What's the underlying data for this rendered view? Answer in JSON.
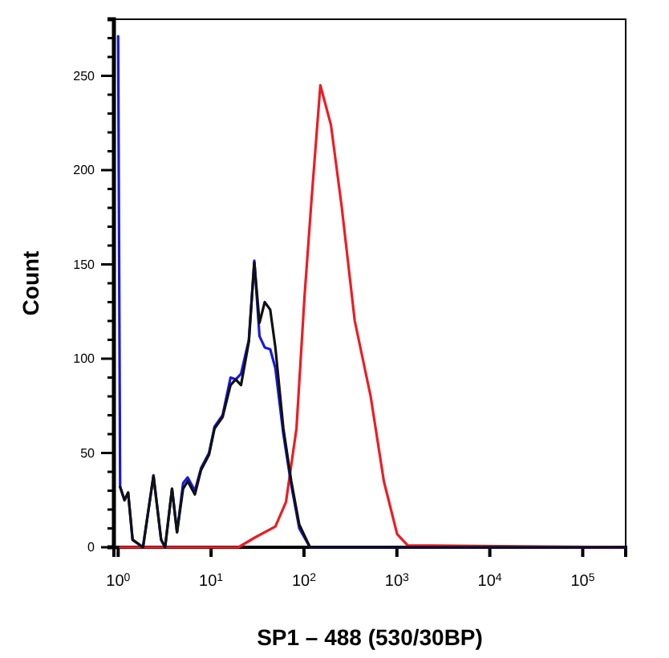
{
  "chart_data": {
    "type": "line",
    "xlabel": "SP1 – 488 (530/30BP)",
    "ylabel": "Count",
    "log": "x",
    "grid": false,
    "marker": "none",
    "line_style": "solid",
    "xlim": [
      0.9,
      290000
    ],
    "ylim": [
      0,
      280
    ],
    "xticks": [
      {
        "value": 1,
        "label": "10$^{0}$"
      },
      {
        "value": 10,
        "label": "10$^{1}$"
      },
      {
        "value": 100,
        "label": "10$^{2}$"
      },
      {
        "value": 1000,
        "label": "10$^{3}$"
      },
      {
        "value": 10000,
        "label": "10$^{4}$"
      },
      {
        "value": 100000,
        "label": "10$^{5}$"
      }
    ],
    "yticks": [
      0,
      {
        "value": 10,
        "label": null
      },
      {
        "value": 20,
        "label": null
      },
      {
        "value": 30,
        "label": null
      },
      {
        "value": 40,
        "label": null
      },
      50,
      {
        "value": 60,
        "label": null
      },
      {
        "value": 70,
        "label": null
      },
      {
        "value": 80,
        "label": null
      },
      {
        "value": 90,
        "label": null
      },
      100,
      {
        "value": 110,
        "label": null
      },
      {
        "value": 120,
        "label": null
      },
      {
        "value": 130,
        "label": null
      },
      {
        "value": 140,
        "label": null
      },
      150,
      {
        "value": 160,
        "label": null
      },
      {
        "value": 170,
        "label": null
      },
      {
        "value": 180,
        "label": null
      },
      {
        "value": 190,
        "label": null
      },
      200,
      {
        "value": 210,
        "label": null
      },
      {
        "value": 220,
        "label": null
      },
      {
        "value": 230,
        "label": null
      },
      {
        "value": 240,
        "label": null
      },
      250,
      {
        "value": 260,
        "label": null
      },
      {
        "value": 270,
        "label": null
      }
    ],
    "series": [
      {
        "color": "#ee1c24",
        "x": [
          1.05,
          19.7,
          29.2,
          49.2,
          64,
          83,
          101,
          120,
          150,
          195,
          254,
          352,
          522,
          724,
          1006,
          1306,
          280000
        ],
        "values": [
          0,
          0,
          5,
          11,
          24,
          63,
          132,
          183,
          245,
          224,
          181,
          120,
          80,
          35,
          7,
          1,
          0
        ]
      },
      {
        "color": "#1a1adc",
        "x": [
          1.0,
          1.05,
          1.17,
          1.28,
          1.43,
          1.85,
          2.4,
          2.9,
          3.2,
          3.8,
          4.3,
          5.0,
          5.6,
          6.7,
          7.8,
          9.5,
          10.9,
          13.3,
          16.2,
          18.4,
          21,
          25.5,
          29.2,
          33.2,
          37.8,
          43.3,
          49.2,
          60,
          73,
          89,
          116,
          280000
        ],
        "values": [
          271,
          32,
          25,
          29,
          4,
          0,
          38,
          4,
          0,
          31,
          8,
          34,
          37,
          30,
          42,
          50,
          64,
          70,
          90,
          89,
          92,
          110,
          152,
          112,
          106,
          105,
          95,
          60,
          33,
          10,
          0,
          0
        ]
      },
      {
        "color": "#111111",
        "x": [
          1.05,
          1.17,
          1.28,
          1.43,
          1.85,
          2.4,
          2.9,
          3.2,
          3.8,
          4.3,
          5.0,
          5.6,
          6.7,
          7.8,
          9.5,
          10.9,
          13.3,
          16.2,
          18.4,
          21,
          25.5,
          29.2,
          33.2,
          37.8,
          43.3,
          49.2,
          60,
          73,
          89,
          116,
          280000
        ],
        "values": [
          32,
          25,
          29,
          4,
          0,
          38,
          4,
          0,
          31,
          8,
          31,
          35,
          28,
          41,
          49,
          63,
          69,
          86,
          89,
          86,
          109,
          151,
          119,
          130,
          126,
          106,
          63,
          35,
          12,
          0,
          0
        ]
      }
    ]
  }
}
